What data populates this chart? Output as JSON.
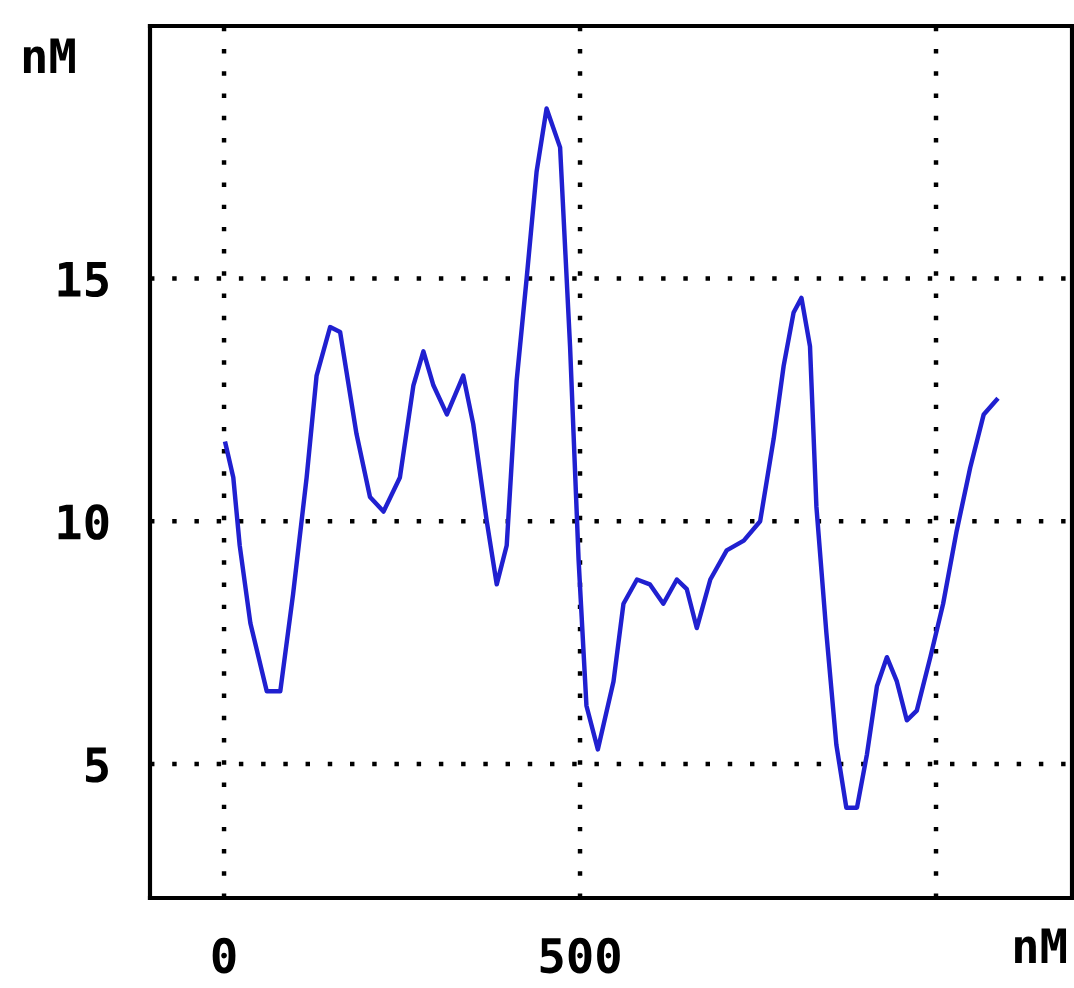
{
  "chart_data": {
    "type": "line",
    "xlabel": "nM",
    "ylabel": "nM",
    "xlim": [
      -104,
      1191
    ],
    "ylim": [
      2.24,
      20.2
    ],
    "xticks": [
      0,
      500,
      {
        "value": 1000,
        "label": null
      }
    ],
    "yticks": [
      5,
      10,
      15
    ],
    "grid": true,
    "line_style": "solid",
    "marker": "none",
    "series": [
      {
        "color": "#2020d0",
        "x": [
          2,
          13,
          22,
          37,
          60,
          79,
          97,
          116,
          130,
          149,
          163,
          186,
          205,
          224,
          247,
          266,
          280,
          294,
          313,
          336,
          350,
          369,
          383,
          397,
          411,
          425,
          439,
          453,
          472,
          486,
          498,
          509,
          525,
          547,
          561,
          580,
          598,
          617,
          636,
          650,
          664,
          683,
          706,
          730,
          753,
          772,
          786,
          800,
          811,
          823,
          832,
          846,
          860,
          874,
          889,
          903,
          917,
          931,
          945,
          959,
          973,
          992,
          1010,
          1029,
          1048,
          1067,
          1085
        ],
        "values": [
          11.6,
          10.9,
          9.5,
          7.9,
          6.5,
          6.5,
          8.5,
          10.9,
          13.0,
          14.0,
          13.9,
          11.8,
          10.5,
          10.2,
          10.9,
          12.8,
          13.5,
          12.8,
          12.2,
          13.0,
          12.0,
          10.0,
          8.7,
          9.5,
          12.9,
          15.0,
          17.2,
          18.5,
          17.7,
          13.6,
          9.2,
          6.2,
          5.3,
          6.7,
          8.3,
          8.8,
          8.7,
          8.3,
          8.8,
          8.6,
          7.8,
          8.8,
          9.4,
          9.6,
          10.0,
          11.7,
          13.2,
          14.3,
          14.6,
          13.6,
          10.3,
          7.7,
          5.4,
          4.1,
          4.1,
          5.2,
          6.6,
          7.2,
          6.7,
          5.9,
          6.1,
          7.2,
          8.3,
          9.8,
          11.1,
          12.2,
          12.5
        ]
      }
    ]
  }
}
